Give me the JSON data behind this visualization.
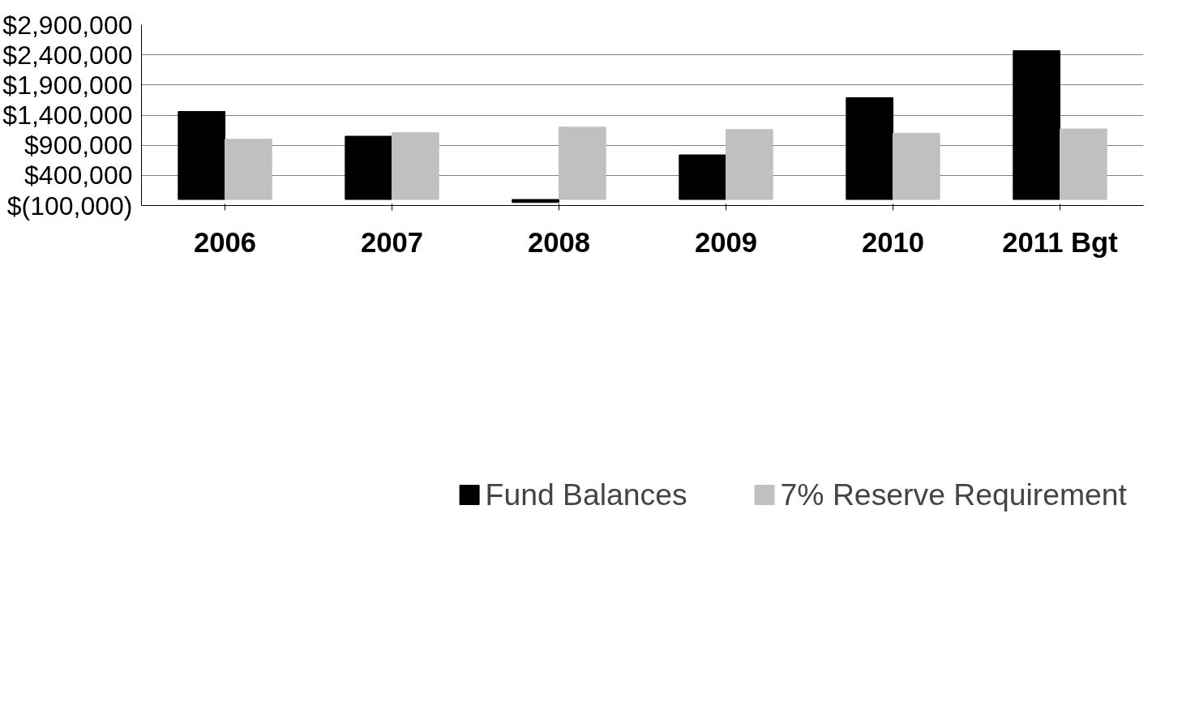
{
  "chart_data": {
    "type": "bar",
    "categories": [
      "2006",
      "2007",
      "2008",
      "2009",
      "2010",
      "2011 Bgt"
    ],
    "series": [
      {
        "name": "Fund Balances",
        "color": "#000000",
        "values": [
          1460000,
          1050000,
          -50000,
          740000,
          1690000,
          2470000
        ]
      },
      {
        "name": "7% Reserve Requirement",
        "color": "#c0c0c0",
        "values": [
          1000000,
          1110000,
          1200000,
          1160000,
          1100000,
          1170000
        ]
      }
    ],
    "ylim": [
      -100000,
      2900000
    ],
    "yticks": [
      {
        "value": -100000,
        "label": "$(100,000)"
      },
      {
        "value": 400000,
        "label": "$400,000"
      },
      {
        "value": 900000,
        "label": "$900,000"
      },
      {
        "value": 1400000,
        "label": "$1,400,000"
      },
      {
        "value": 1900000,
        "label": "$1,900,000"
      },
      {
        "value": 2400000,
        "label": "$2,400,000"
      },
      {
        "value": 2900000,
        "label": "$2,900,000"
      }
    ],
    "grid": "y",
    "legend": "bottom"
  }
}
